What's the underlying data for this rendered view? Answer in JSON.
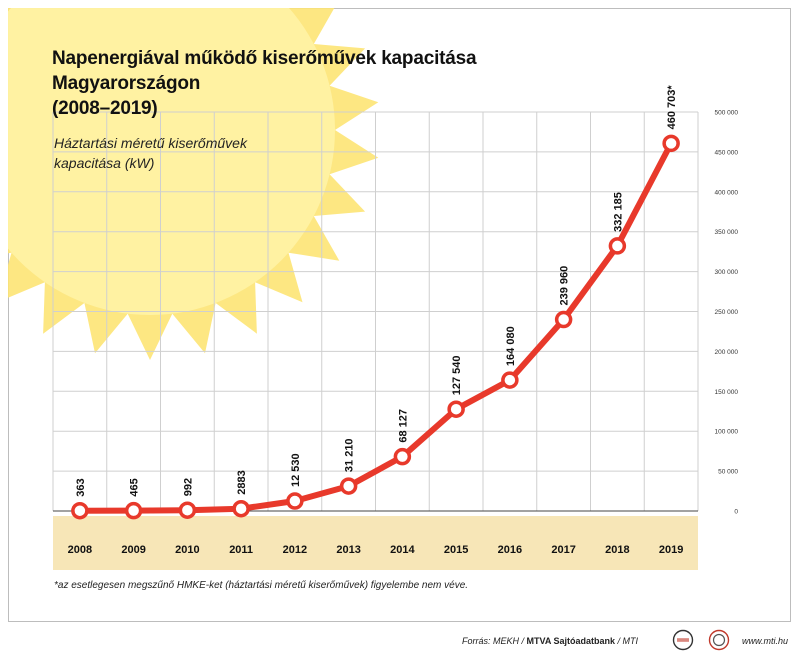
{
  "title_lines": [
    "Napenergiával működő kiserőművek kapacitása",
    "Magyarországon",
    "(2008–2019)"
  ],
  "subtitle_lines": [
    "Háztartási méretű kiserőművek",
    "kapacitása (kW)"
  ],
  "footnote": "*az esetlegesen megszűnő HMKE-ket (háztartási méretű kiserőművek) figyelembe nem véve.",
  "source": {
    "prefix": "Forrás: MEKH / ",
    "bold": "MTVA Sajtóadatbank",
    "suffix": " / MTI"
  },
  "website": "www.mti.hu",
  "logos": [
    "mtva-logo-icon",
    "mti-logo-icon"
  ],
  "colors": {
    "line": "#e8392b",
    "band": "#f7e6b7",
    "sun": "#fde474",
    "grid": "#cfcfcf"
  },
  "chart_data": {
    "type": "line",
    "title": "Napenergiával működő kiserőművek kapacitása Magyarországon (2008–2019)",
    "ylabel": "Háztartási méretű kiserőművek kapacitása (kW)",
    "categories": [
      "2008",
      "2009",
      "2010",
      "2011",
      "2012",
      "2013",
      "2014",
      "2015",
      "2016",
      "2017",
      "2018",
      "2019"
    ],
    "values": [
      363,
      465,
      992,
      2883,
      12530,
      31210,
      68127,
      127540,
      164080,
      239960,
      332185,
      460703
    ],
    "data_labels": [
      "363",
      "465",
      "992",
      "2883",
      "12 530",
      "31 210",
      "68 127",
      "127 540",
      "164 080",
      "239 960",
      "332 185",
      "460 703*"
    ],
    "ylim": [
      0,
      500000
    ],
    "yticks": [
      0,
      50000,
      100000,
      150000,
      200000,
      250000,
      300000,
      350000,
      400000,
      450000,
      500000
    ],
    "ytick_labels": [
      "0",
      "50 000",
      "100 000",
      "150 000",
      "200 000",
      "250 000",
      "300 000",
      "350 000",
      "400 000",
      "450 000",
      "500 000"
    ],
    "yaxis_position": "right",
    "grid": true
  }
}
